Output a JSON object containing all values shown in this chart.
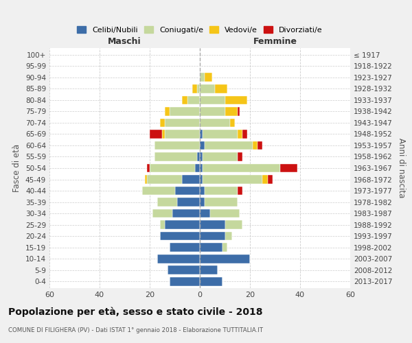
{
  "age_groups": [
    "0-4",
    "5-9",
    "10-14",
    "15-19",
    "20-24",
    "25-29",
    "30-34",
    "35-39",
    "40-44",
    "45-49",
    "50-54",
    "55-59",
    "60-64",
    "65-69",
    "70-74",
    "75-79",
    "80-84",
    "85-89",
    "90-94",
    "95-99",
    "100+"
  ],
  "birth_years": [
    "2013-2017",
    "2008-2012",
    "2003-2007",
    "1998-2002",
    "1993-1997",
    "1988-1992",
    "1983-1987",
    "1978-1982",
    "1973-1977",
    "1968-1972",
    "1963-1967",
    "1958-1962",
    "1953-1957",
    "1948-1952",
    "1943-1947",
    "1938-1942",
    "1933-1937",
    "1928-1932",
    "1923-1927",
    "1918-1922",
    "≤ 1917"
  ],
  "male": {
    "celibi": [
      12,
      13,
      17,
      12,
      16,
      14,
      11,
      9,
      10,
      7,
      2,
      1,
      0,
      0,
      0,
      0,
      0,
      0,
      0,
      0,
      0
    ],
    "coniugati": [
      0,
      0,
      0,
      0,
      0,
      2,
      8,
      8,
      13,
      14,
      18,
      17,
      18,
      14,
      14,
      12,
      5,
      1,
      0,
      0,
      0
    ],
    "vedovi": [
      0,
      0,
      0,
      0,
      0,
      0,
      0,
      0,
      0,
      1,
      0,
      0,
      0,
      1,
      2,
      2,
      2,
      2,
      0,
      0,
      0
    ],
    "divorziati": [
      0,
      0,
      0,
      0,
      0,
      0,
      0,
      0,
      0,
      0,
      1,
      0,
      0,
      5,
      0,
      0,
      0,
      0,
      0,
      0,
      0
    ]
  },
  "female": {
    "nubili": [
      9,
      7,
      20,
      9,
      10,
      10,
      4,
      2,
      2,
      1,
      1,
      1,
      2,
      1,
      0,
      0,
      0,
      0,
      0,
      0,
      0
    ],
    "coniugate": [
      0,
      0,
      0,
      2,
      3,
      7,
      12,
      13,
      13,
      24,
      31,
      14,
      19,
      14,
      12,
      10,
      10,
      6,
      2,
      0,
      0
    ],
    "vedove": [
      0,
      0,
      0,
      0,
      0,
      0,
      0,
      0,
      0,
      2,
      0,
      0,
      2,
      2,
      2,
      5,
      9,
      5,
      3,
      0,
      0
    ],
    "divorziate": [
      0,
      0,
      0,
      0,
      0,
      0,
      0,
      0,
      2,
      2,
      7,
      2,
      2,
      2,
      0,
      1,
      0,
      0,
      0,
      0,
      0
    ]
  },
  "colors": {
    "celibi_nubili": "#3d6da8",
    "coniugati": "#c5d89d",
    "vedovi": "#f5c518",
    "divorziati": "#cc1111"
  },
  "xlim": 60,
  "title": "Popolazione per età, sesso e stato civile - 2018",
  "subtitle": "COMUNE DI FILIGHERA (PV) - Dati ISTAT 1° gennaio 2018 - Elaborazione TUTTITALIA.IT",
  "ylabel_left": "Fasce di età",
  "ylabel_right": "Anni di nascita",
  "xlabel_left": "Maschi",
  "xlabel_right": "Femmine",
  "legend_labels": [
    "Celibi/Nubili",
    "Coniugati/e",
    "Vedovi/e",
    "Divorziati/e"
  ],
  "bg_color": "#f0f0f0",
  "plot_bg_color": "#ffffff"
}
